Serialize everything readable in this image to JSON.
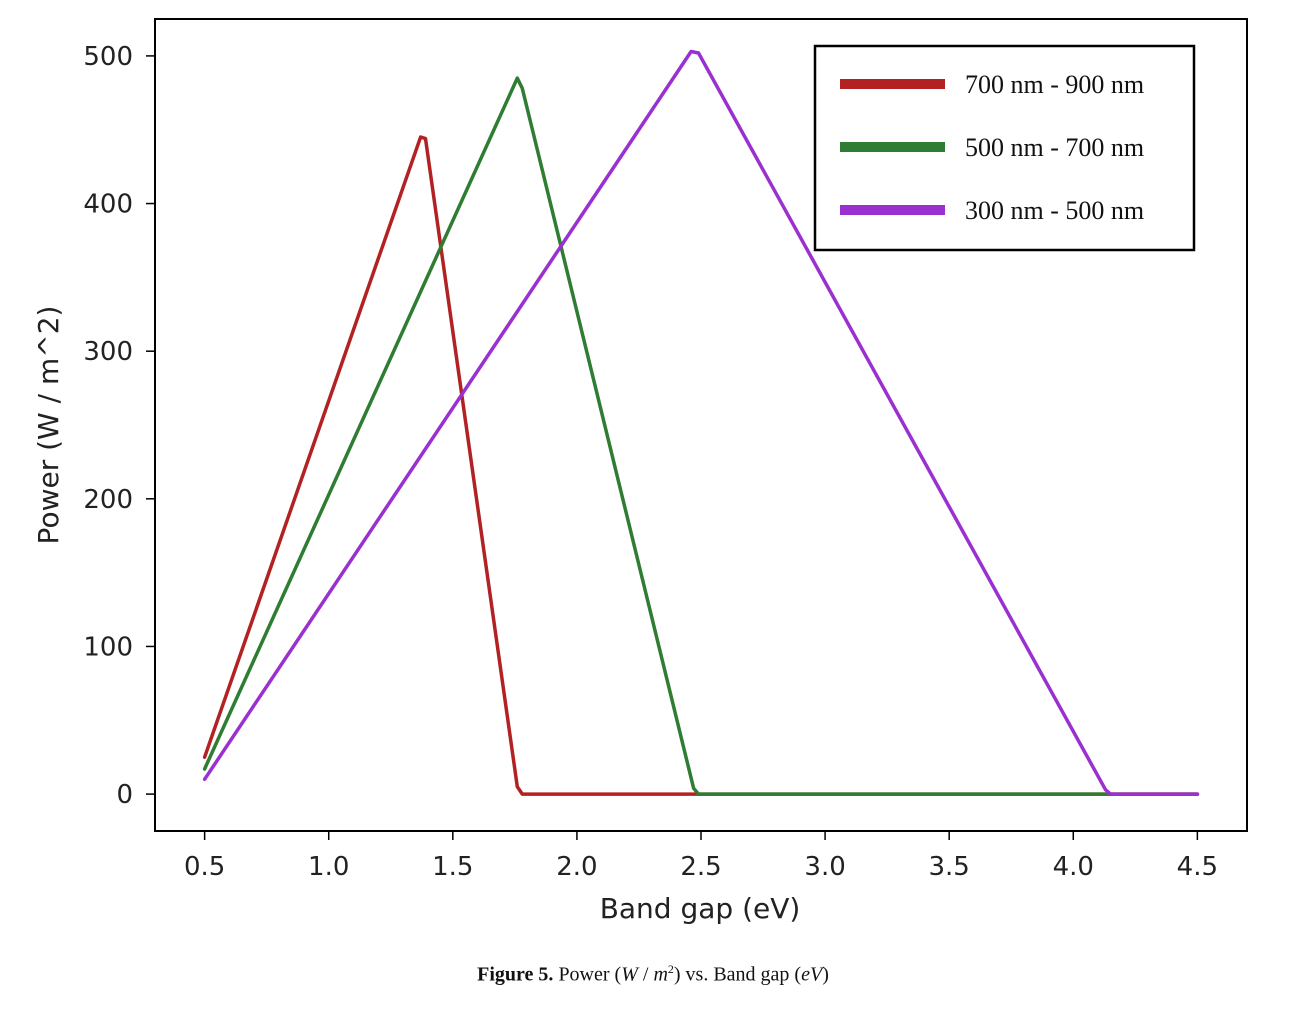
{
  "chart_data": {
    "type": "line",
    "xlabel": "Band gap (eV)",
    "ylabel": "Power (W / m^2)",
    "xlim": [
      0.3,
      4.7
    ],
    "ylim": [
      -25,
      525
    ],
    "xticks": [
      "0.5",
      "1.0",
      "1.5",
      "2.0",
      "2.5",
      "3.0",
      "3.5",
      "4.0",
      "4.5"
    ],
    "yticks": [
      "0",
      "100",
      "200",
      "300",
      "400",
      "500"
    ],
    "grid": false,
    "legend_position": "top-right",
    "series": [
      {
        "name": "700 nm - 900 nm",
        "color": "#b22222",
        "points": [
          [
            0.5,
            25
          ],
          [
            1.37,
            445
          ],
          [
            1.39,
            444
          ],
          [
            1.76,
            5
          ],
          [
            1.78,
            0
          ],
          [
            4.5,
            0
          ]
        ]
      },
      {
        "name": "500 nm - 700 nm",
        "color": "#2e7d32",
        "points": [
          [
            0.5,
            17
          ],
          [
            1.76,
            485
          ],
          [
            1.78,
            478
          ],
          [
            2.47,
            4
          ],
          [
            2.49,
            0
          ],
          [
            4.5,
            0
          ]
        ]
      },
      {
        "name": "300 nm - 500 nm",
        "color": "#9b30d0",
        "points": [
          [
            0.5,
            10
          ],
          [
            2.46,
            503
          ],
          [
            2.49,
            502
          ],
          [
            4.13,
            3
          ],
          [
            4.15,
            0
          ],
          [
            4.5,
            0
          ]
        ]
      }
    ]
  },
  "caption": {
    "label": "Figure 5.",
    "text_before": " Power (",
    "w": "W",
    "slash": " / ",
    "m": "m",
    "sup": "2",
    "text_mid": ") vs. Band gap (",
    "ev": "eV",
    "text_end": ")"
  }
}
